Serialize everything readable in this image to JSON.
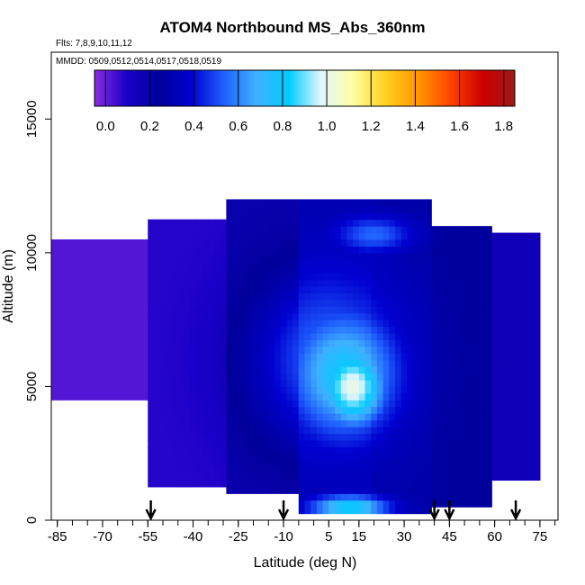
{
  "chart_data": {
    "type": "heatmap",
    "title": "ATOM4 Northbound MS_Abs_360nm",
    "subtitle_flights": "Flts: 7,8,9,10,11,12",
    "subtitle_dates": "MMDD: 0509,0512,0514,0517,0518,0519",
    "xlabel": "Latitude (deg N)",
    "ylabel": "Altitude (m)",
    "xlim": [
      -87,
      81
    ],
    "ylim": [
      0,
      17500
    ],
    "x_ticks": [
      -85,
      -70,
      -55,
      -40,
      -25,
      -10,
      5,
      15,
      30,
      45,
      60,
      75
    ],
    "x_minor_step": 5,
    "y_ticks": [
      0,
      5000,
      10000,
      15000
    ],
    "colorbar": {
      "range": [
        -0.05,
        1.85
      ],
      "ticks": [
        0.0,
        0.2,
        0.4,
        0.6,
        0.8,
        1.0,
        1.2,
        1.4,
        1.6,
        1.8
      ],
      "tick_labels": [
        "0.0",
        "0.2",
        "0.4",
        "0.6",
        "0.8",
        "1.0",
        "1.2",
        "1.4",
        "1.6",
        "1.8"
      ],
      "colors": [
        "#8a2be2",
        "#1a00c8",
        "#00009a",
        "#0000d0",
        "#2060ff",
        "#40b0ff",
        "#00ccff",
        "#e0f6ff",
        "#ffffa0",
        "#ffd020",
        "#ff9900",
        "#ff4400",
        "#cc0000",
        "#a01818"
      ]
    },
    "arrow_latitudes": [
      -54,
      -10,
      40,
      45,
      67
    ],
    "profile_bands": [
      {
        "lat": [
          -86,
          -55
        ],
        "bottom": 4500,
        "top": 10500,
        "v": 0.02
      },
      {
        "lat": [
          -55,
          -28
        ],
        "bottom": 1200,
        "top": 11200,
        "v": 0.08
      },
      {
        "lat": [
          -28,
          -5
        ],
        "bottom": 1000,
        "top": 12000,
        "v": 0.18
      },
      {
        "lat": [
          -5,
          20
        ],
        "bottom": 200,
        "top": 12000,
        "v": 0.3
      },
      {
        "lat": [
          20,
          40
        ],
        "bottom": 300,
        "top": 12000,
        "v": 0.28
      },
      {
        "lat": [
          40,
          60
        ],
        "bottom": 500,
        "top": 11000,
        "v": 0.25
      },
      {
        "lat": [
          60,
          76
        ],
        "bottom": 1500,
        "top": 10800,
        "v": 0.15
      }
    ],
    "features": [
      {
        "lat_center": 13,
        "alt_center": 5000,
        "lat_width": 26,
        "alt_width": 3500,
        "v": 1.02
      },
      {
        "lat_center": 10,
        "alt_center": 5500,
        "lat_width": 42,
        "alt_width": 5500,
        "v": 0.8
      },
      {
        "lat_center": 5,
        "alt_center": 6000,
        "lat_width": 60,
        "alt_width": 8000,
        "v": 0.55
      },
      {
        "lat_center": 12,
        "alt_center": 500,
        "lat_width": 30,
        "alt_width": 1000,
        "v": 0.85
      },
      {
        "lat_center": 20,
        "alt_center": 10700,
        "lat_width": 30,
        "alt_width": 1600,
        "v": 0.55
      }
    ]
  }
}
